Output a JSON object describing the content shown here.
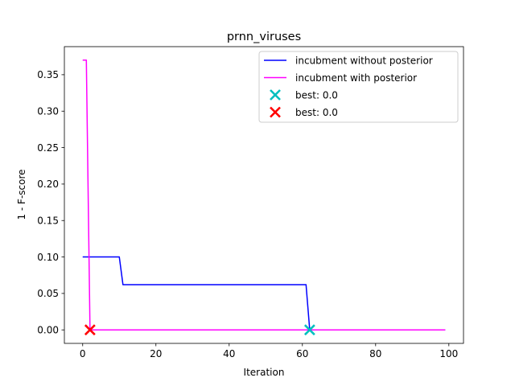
{
  "chart_data": {
    "type": "line",
    "title": "prnn_viruses",
    "xlabel": "Iteration",
    "ylabel": "1 - F-score",
    "xlim": [
      -5,
      104
    ],
    "ylim": [
      -0.0185,
      0.3885
    ],
    "xticks": [
      0,
      20,
      40,
      60,
      80,
      100
    ],
    "xtick_labels": [
      "0",
      "20",
      "40",
      "60",
      "80",
      "100"
    ],
    "yticks": [
      0.0,
      0.05,
      0.1,
      0.15,
      0.2,
      0.25,
      0.3,
      0.35
    ],
    "ytick_labels": [
      "0.00",
      "0.05",
      "0.10",
      "0.15",
      "0.20",
      "0.25",
      "0.30",
      "0.35"
    ],
    "grid": false,
    "legend_position": "upper right",
    "series": [
      {
        "name": "incubment without posterior",
        "kind": "line",
        "color": "#0000ff",
        "x": [
          0,
          10,
          11,
          61,
          62,
          99
        ],
        "y": [
          0.1,
          0.1,
          0.062,
          0.062,
          0.0,
          0.0
        ]
      },
      {
        "name": "incubment with posterior",
        "kind": "line",
        "color": "#ff00ff",
        "x": [
          0,
          1,
          2,
          99
        ],
        "y": [
          0.37,
          0.37,
          0.0,
          0.0
        ]
      },
      {
        "name": "best: 0.0",
        "kind": "marker",
        "marker": "x",
        "color": "#00bfbf",
        "x": [
          62
        ],
        "y": [
          0.0
        ]
      },
      {
        "name": "best: 0.0",
        "kind": "marker",
        "marker": "x",
        "color": "#ff0000",
        "x": [
          2
        ],
        "y": [
          0.0
        ]
      }
    ]
  }
}
